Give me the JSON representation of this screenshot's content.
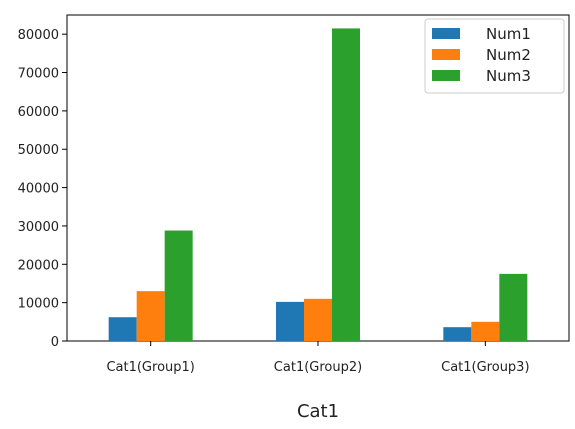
{
  "chart_data": {
    "type": "bar",
    "categories": [
      "Cat1(Group1)",
      "Cat1(Group2)",
      "Cat1(Group3)"
    ],
    "series": [
      {
        "name": "Num1",
        "values": [
          6200,
          10200,
          3600
        ]
      },
      {
        "name": "Num2",
        "values": [
          13000,
          11000,
          5000
        ]
      },
      {
        "name": "Num3",
        "values": [
          28800,
          81500,
          17500
        ]
      }
    ],
    "xlabel": "Cat1",
    "ylabel": "",
    "ylim": [
      0,
      85000
    ],
    "yticks": [
      "0",
      "10000",
      "20000",
      "30000",
      "40000",
      "50000",
      "60000",
      "70000",
      "80000"
    ],
    "grid": false,
    "legend_position": "top-right",
    "colors": [
      "#1f77b4",
      "#ff7f0e",
      "#2ca02c"
    ]
  }
}
